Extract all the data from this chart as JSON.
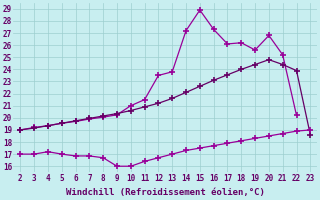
{
  "xlabel": "Windchill (Refroidissement éolien,°C)",
  "x": [
    2,
    3,
    4,
    5,
    6,
    7,
    8,
    9,
    10,
    11,
    12,
    13,
    14,
    15,
    16,
    17,
    18,
    19,
    20,
    21,
    22,
    23
  ],
  "line1_x": [
    2,
    3,
    4,
    5,
    6,
    7,
    8,
    9,
    10,
    11,
    12,
    13,
    14,
    15,
    16,
    17,
    18,
    19,
    20,
    21,
    22
  ],
  "line1_y": [
    19.0,
    19.2,
    19.35,
    19.55,
    19.7,
    19.9,
    20.05,
    20.25,
    21.0,
    21.5,
    23.5,
    23.8,
    27.2,
    28.9,
    27.3,
    26.1,
    26.2,
    25.6,
    26.8,
    25.2,
    20.2
  ],
  "line2_x": [
    2,
    3,
    4,
    5,
    6,
    7,
    8,
    9,
    10,
    11,
    12,
    13,
    14,
    15,
    16,
    17,
    18,
    19,
    20,
    21,
    22,
    23
  ],
  "line2_y": [
    19.0,
    19.15,
    19.35,
    19.55,
    19.75,
    19.95,
    20.15,
    20.35,
    20.6,
    20.9,
    21.2,
    21.6,
    22.1,
    22.6,
    23.1,
    23.55,
    24.0,
    24.4,
    24.8,
    24.4,
    23.9,
    18.6
  ],
  "line3_x": [
    2,
    3,
    4,
    5,
    6,
    7,
    8,
    9,
    10,
    11,
    12,
    13,
    14,
    15,
    16,
    17,
    18,
    19,
    20,
    21,
    22,
    23
  ],
  "line3_y": [
    17.0,
    17.0,
    17.2,
    17.0,
    16.85,
    16.85,
    16.7,
    16.0,
    16.0,
    16.4,
    16.7,
    17.0,
    17.3,
    17.5,
    17.7,
    17.9,
    18.1,
    18.3,
    18.5,
    18.7,
    18.9,
    19.0
  ],
  "yticks": [
    16,
    17,
    18,
    19,
    20,
    21,
    22,
    23,
    24,
    25,
    26,
    27,
    28,
    29
  ],
  "ylim": [
    15.5,
    29.5
  ],
  "xlim": [
    1.5,
    23.5
  ],
  "bg_color": "#c8eef0",
  "grid_color": "#9dcfcf",
  "line_color1": "#990099",
  "line_color2": "#660066",
  "marker": "+",
  "markersize": 4,
  "markeredgewidth": 1.2,
  "linewidth": 0.9,
  "xlabel_fontsize": 6.5,
  "tick_fontsize": 5.5
}
